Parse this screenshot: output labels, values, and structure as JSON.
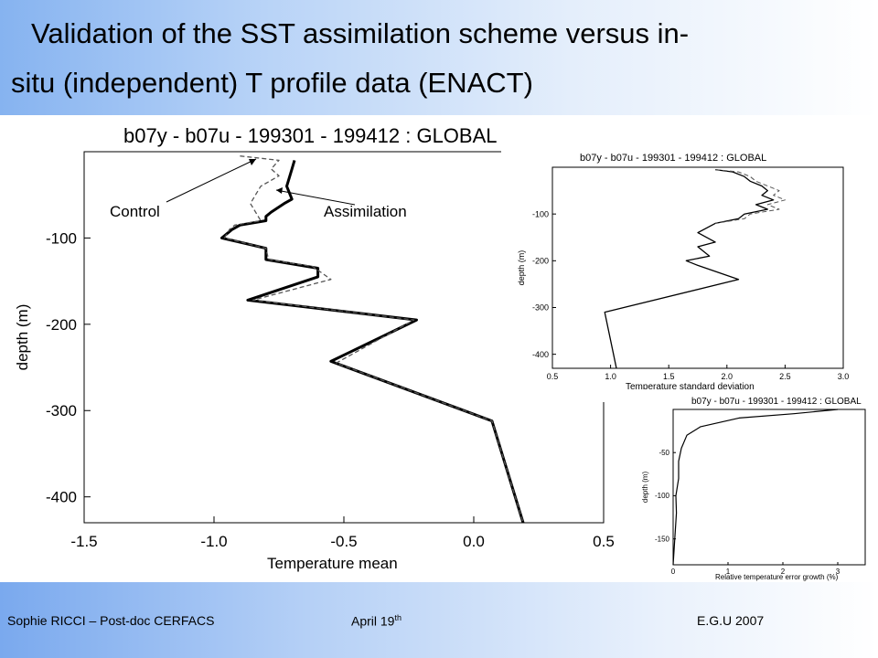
{
  "slide": {
    "title_line1": "Validation of the SST assimilation scheme  versus in-",
    "title_line2": "situ (independent) T profile data (ENACT)",
    "footer": {
      "author": "Sophie RICCI – Post-doc CERFACS",
      "date": "April 19",
      "date_sup": "th",
      "event": "E.G.U 2007"
    }
  },
  "colors": {
    "title_gradient_start": "#86b3f0",
    "footer_gradient_start": "#7aa9ee",
    "line": "#000000",
    "dashed": "#555555"
  },
  "chart_data": [
    {
      "type": "line",
      "title": "b07y - b07u - 199301 - 199412 : GLOBAL",
      "xlabel": "Temperature mean",
      "ylabel": "depth (m)",
      "xlim": [
        -1.5,
        0.5
      ],
      "ylim": [
        -430,
        0
      ],
      "xticks": [
        "-1.5",
        "-1.0",
        "-0.5",
        "0.0",
        "0.5"
      ],
      "yticks": [
        "-100",
        "-200",
        "-300",
        "-400"
      ],
      "annotations": [
        "Control",
        "Assimilation"
      ],
      "series": [
        {
          "style": "solid",
          "x": [
            -0.69,
            -0.7,
            -0.72,
            -0.7,
            -0.73,
            -0.78,
            -0.8,
            -0.8,
            -0.9,
            -0.93,
            -0.97,
            -0.8,
            -0.8,
            -0.6,
            -0.6,
            -0.87,
            -0.22,
            -0.55,
            0.07,
            0.19
          ],
          "y": [
            -10,
            -20,
            -40,
            -55,
            -60,
            -70,
            -75,
            -80,
            -85,
            -90,
            -100,
            -112,
            -125,
            -135,
            -145,
            -172,
            -195,
            -243,
            -312,
            -430
          ]
        },
        {
          "style": "dashed",
          "x": [
            -0.9,
            -0.75,
            -0.78,
            -0.75,
            -0.82,
            -0.84,
            -0.86,
            -0.82,
            -0.92,
            -0.94,
            -0.96,
            -0.8,
            -0.79,
            -0.62,
            -0.55,
            -0.85,
            -0.23,
            -0.53,
            0.07,
            0.19
          ],
          "y": [
            -5,
            -10,
            -20,
            -28,
            -40,
            -50,
            -60,
            -80,
            -85,
            -90,
            -100,
            -112,
            -125,
            -133,
            -148,
            -172,
            -195,
            -245,
            -312,
            -430
          ]
        }
      ]
    },
    {
      "type": "line",
      "title": "b07y - b07u - 199301 - 199412 : GLOBAL",
      "xlabel": "Temperature standard deviation",
      "ylabel": "depth (m)",
      "xlim": [
        0.5,
        3.0
      ],
      "ylim": [
        -430,
        0
      ],
      "xticks": [
        "0.5",
        "1.0",
        "1.5",
        "2.0",
        "2.5",
        "3.0"
      ],
      "yticks": [
        "-100",
        "-200",
        "-300",
        "-400"
      ],
      "series": [
        {
          "style": "solid",
          "x": [
            1.9,
            2.05,
            2.15,
            2.2,
            2.3,
            2.35,
            2.3,
            2.4,
            2.25,
            2.35,
            2.15,
            2.1,
            1.9,
            1.75,
            1.9,
            1.75,
            1.85,
            1.65,
            1.75,
            2.1,
            0.95,
            1.05
          ],
          "y": [
            -5,
            -10,
            -20,
            -30,
            -40,
            -50,
            -60,
            -70,
            -80,
            -90,
            -100,
            -110,
            -120,
            -140,
            -160,
            -170,
            -190,
            -200,
            -210,
            -240,
            -310,
            -430
          ]
        },
        {
          "style": "dashed",
          "x": [
            1.9,
            2.1,
            2.2,
            2.25,
            2.35,
            2.45,
            2.4,
            2.5,
            2.35,
            2.45,
            2.2,
            2.15,
            1.9
          ],
          "y": [
            -5,
            -10,
            -20,
            -30,
            -40,
            -50,
            -60,
            -70,
            -80,
            -90,
            -100,
            -110,
            -120
          ]
        }
      ]
    },
    {
      "type": "line",
      "title": "b07y - b07u - 199301 - 199412 : GLOBAL",
      "xlabel": "Relative temperature error growth (%)",
      "ylabel": "depth (m)",
      "xlim": [
        0,
        3.5
      ],
      "ylim": [
        -180,
        0
      ],
      "xticks": [
        "0",
        "1",
        "2",
        "3"
      ],
      "yticks": [
        "-50",
        "-100",
        "-150"
      ],
      "series": [
        {
          "style": "solid",
          "x": [
            3.0,
            2.2,
            1.2,
            0.5,
            0.25,
            0.15,
            0.1,
            0.1,
            0.05,
            0.06,
            0.04,
            0.02,
            0.0
          ],
          "y": [
            0,
            -5,
            -10,
            -20,
            -30,
            -45,
            -60,
            -80,
            -100,
            -120,
            -140,
            -160,
            -180
          ]
        }
      ]
    }
  ]
}
